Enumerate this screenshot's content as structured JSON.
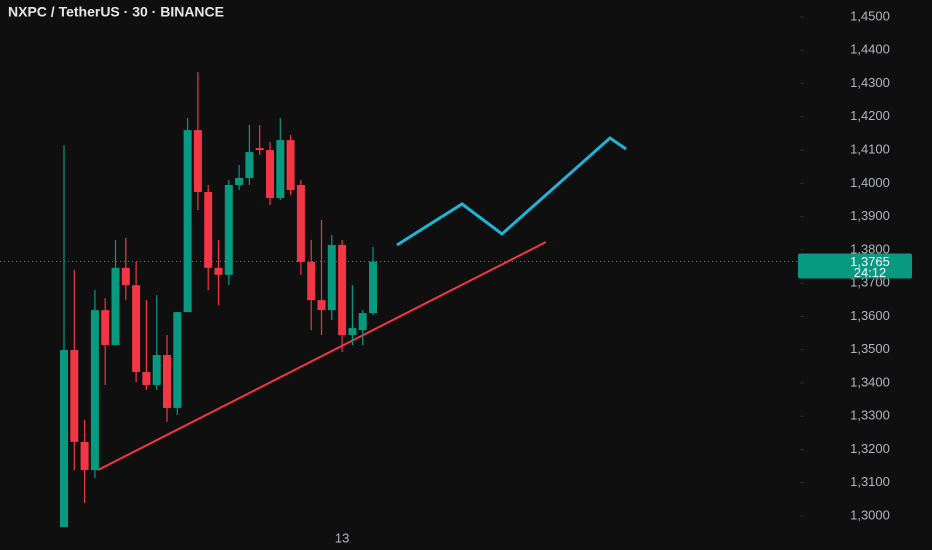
{
  "chart_data": {
    "type": "candlestick",
    "title": "NXPC / TetherUS · 30 · BINANCE",
    "categories": [
      null,
      null,
      null,
      null,
      null,
      null,
      null,
      null,
      null,
      null,
      null,
      null,
      null,
      null,
      null,
      null,
      null,
      null,
      null,
      null,
      null,
      null,
      null,
      null,
      null,
      null,
      null,
      "13",
      null,
      null,
      null
    ],
    "open": [
      1.2967,
      1.3499,
      1.3223,
      1.3138,
      1.3619,
      1.3514,
      1.3746,
      1.3694,
      1.3433,
      1.3394,
      1.3484,
      1.3325,
      1.3613,
      1.416,
      1.3974,
      1.3746,
      1.3725,
      1.3995,
      1.4016,
      1.4106,
      1.41,
      1.3956,
      1.413,
      1.3995,
      1.3764,
      1.3649,
      1.3619,
      1.3815,
      1.3544,
      1.3559,
      1.361
    ],
    "high": [
      1.4115,
      1.374,
      1.3289,
      1.3679,
      1.3655,
      1.383,
      1.3836,
      1.3764,
      1.3649,
      1.3664,
      1.3544,
      1.3613,
      1.4196,
      1.4335,
      1.3995,
      1.383,
      1.401,
      1.4055,
      1.4175,
      1.4175,
      1.4124,
      1.4196,
      1.4145,
      1.401,
      1.383,
      1.389,
      1.3845,
      1.383,
      1.3694,
      1.3619,
      1.3809
    ],
    "low": [
      1.2967,
      1.3138,
      1.3039,
      1.3114,
      1.3394,
      1.3514,
      1.3649,
      1.3403,
      1.3379,
      1.3379,
      1.3283,
      1.3304,
      1.3613,
      1.392,
      1.3679,
      1.3634,
      1.3694,
      1.398,
      1.3995,
      1.4085,
      1.3935,
      1.395,
      1.3965,
      1.3725,
      1.3559,
      1.3544,
      1.3589,
      1.3493,
      1.3514,
      1.3514,
      1.3604
    ],
    "close": [
      1.3499,
      1.3223,
      1.3138,
      1.3619,
      1.3514,
      1.3746,
      1.3694,
      1.3433,
      1.3394,
      1.3484,
      1.3325,
      1.3613,
      1.416,
      1.3974,
      1.3746,
      1.3725,
      1.3995,
      1.4016,
      1.4094,
      1.41,
      1.3956,
      1.413,
      1.398,
      1.3764,
      1.3649,
      1.3619,
      1.3815,
      1.3544,
      1.3565,
      1.361,
      1.3765
    ],
    "up_color": "#089981",
    "down_color": "#f23645",
    "ylim": [
      1.2898,
      1.4551
    ],
    "yticks": [
      {
        "value": 1.45,
        "label": "1,4500"
      },
      {
        "value": 1.44,
        "label": "1,4400"
      },
      {
        "value": 1.43,
        "label": "1,4300"
      },
      {
        "value": 1.42,
        "label": "1,4200"
      },
      {
        "value": 1.41,
        "label": "1,4100"
      },
      {
        "value": 1.4,
        "label": "1,4000"
      },
      {
        "value": 1.39,
        "label": "1,3900"
      },
      {
        "value": 1.38,
        "label": "1,3800"
      },
      {
        "value": 1.37,
        "label": "1,3700"
      },
      {
        "value": 1.36,
        "label": "1,3600"
      },
      {
        "value": 1.35,
        "label": "1,3500"
      },
      {
        "value": 1.34,
        "label": "1,3400"
      },
      {
        "value": 1.33,
        "label": "1,3300"
      },
      {
        "value": 1.32,
        "label": "1,3200"
      },
      {
        "value": 1.31,
        "label": "1,3100"
      },
      {
        "value": 1.3,
        "label": "1,3000"
      }
    ],
    "price": {
      "value": 1.3765,
      "label": "1,3765"
    },
    "countdown": "24:12"
  }
}
